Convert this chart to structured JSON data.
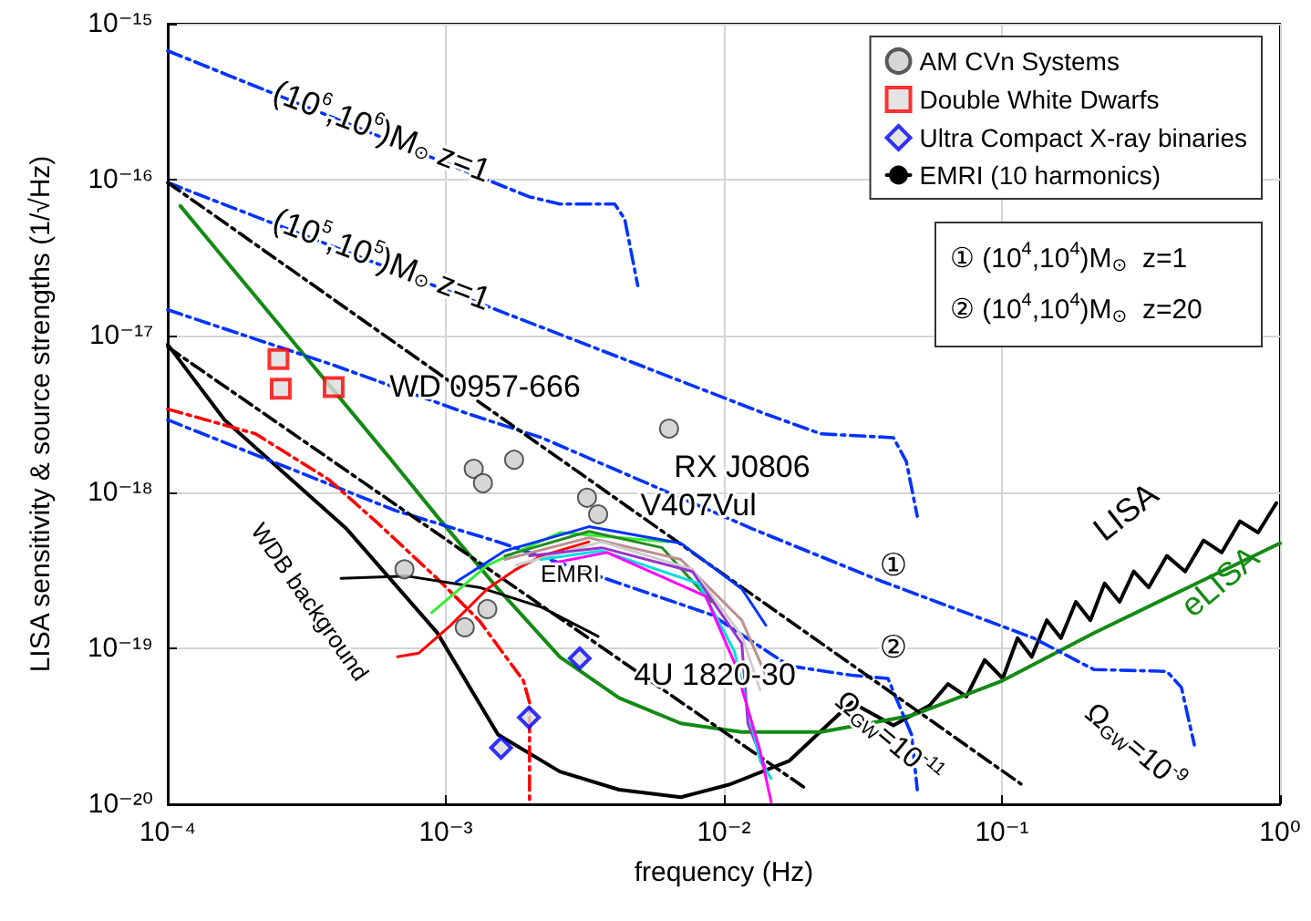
{
  "chart_data": {
    "type": "line",
    "xlabel": "frequency (Hz)",
    "ylabel": "LISA sensitivity & source strengths (1/√Hz)",
    "log": "xy",
    "grid": true,
    "legend": "top right",
    "xlim": [
      0.0001,
      1
    ],
    "ylim": [
      1e-20,
      1e-15
    ],
    "xticks": [
      {
        "value": 0.0001,
        "label": "10⁻⁴"
      },
      {
        "value": 0.001,
        "label": "10⁻³"
      },
      {
        "value": 0.01,
        "label": "10⁻²"
      },
      {
        "value": 0.1,
        "label": "10⁻¹"
      },
      {
        "value": 1,
        "label": "10⁰"
      }
    ],
    "yticks": [
      {
        "value": 1e-20,
        "label": "10⁻²⁰"
      },
      {
        "value": 1e-19,
        "label": "10⁻¹⁹"
      },
      {
        "value": 1e-18,
        "label": "10⁻¹⁸"
      },
      {
        "value": 1e-17,
        "label": "10⁻¹⁷"
      },
      {
        "value": 1e-16,
        "label": "10⁻¹⁶"
      },
      {
        "value": 1e-15,
        "label": "10⁻¹⁵"
      }
    ],
    "series": [
      {
        "type": "line",
        "name": "LISA",
        "color": "#000000",
        "line_style": "solid",
        "marker": "none",
        "x": [
          0.0001,
          0.00016,
          0.00044,
          0.00093,
          0.00154,
          0.00257,
          0.0042,
          0.007,
          0.0105,
          0.0172,
          0.0288,
          0.0407,
          0.055,
          0.064,
          0.0745,
          0.0867,
          0.1007,
          0.1138,
          0.128,
          0.145,
          0.163,
          0.1845,
          0.208,
          0.234,
          0.265,
          0.298,
          0.337,
          0.392,
          0.456,
          0.531,
          0.617,
          0.718,
          0.834,
          0.97
        ],
        "values": [
          8.8e-18,
          2.9e-18,
          5.8e-19,
          1.26e-19,
          2.8e-20,
          1.62e-20,
          1.24e-20,
          1.11e-20,
          1.34e-20,
          1.9e-20,
          4.5e-20,
          3.2e-20,
          4.3e-20,
          5.9e-20,
          4.9e-20,
          8.4e-20,
          6.4e-20,
          1.16e-19,
          8.8e-20,
          1.51e-19,
          1.16e-19,
          1.98e-19,
          1.51e-19,
          2.6e-19,
          1.98e-19,
          3.1e-19,
          2.45e-19,
          3.9e-19,
          3.1e-19,
          4.9e-19,
          4.1e-19,
          6.5e-19,
          5.5e-19,
          8.5e-19
        ]
      },
      {
        "type": "line",
        "name": "eLISA",
        "color": "#138a13",
        "line_style": "solid",
        "marker": "none",
        "x": [
          0.000111,
          0.00062,
          0.00093,
          0.00154,
          0.00257,
          0.0042,
          0.007,
          0.0116,
          0.0223,
          0.0473,
          0.1007,
          0.214,
          0.456,
          1
        ],
        "values": [
          6.8e-17,
          1.7e-18,
          7e-19,
          2.4e-19,
          8.8e-20,
          4.8e-20,
          3.3e-20,
          2.9e-20,
          2.9e-20,
          3.7e-20,
          6.2e-20,
          1.25e-19,
          2.4e-19,
          4.7e-19
        ]
      },
      {
        "type": "line",
        "color": "#0033ff",
        "line_style": "dashed",
        "marker": "none",
        "x": [
          0.0001,
          0.00199,
          0.00257,
          0.00405,
          0.0044,
          0.0049
        ],
        "values": [
          6.7e-16,
          7.8e-17,
          7e-17,
          7e-17,
          5.6e-17,
          2.1e-17
        ]
      },
      {
        "type": "line",
        "color": "#0033ff",
        "line_style": "dashed",
        "marker": "none",
        "x": [
          0.0001,
          0.01416,
          0.0223,
          0.0407,
          0.0453,
          0.0496
        ],
        "values": [
          9.6e-17,
          3.16e-18,
          2.36e-18,
          2.23e-18,
          1.57e-18,
          7e-19
        ]
      },
      {
        "type": "line",
        "color": "#0033ff",
        "line_style": "dashed",
        "marker": "none",
        "x": [
          0.0001,
          0.000395,
          0.00121,
          0.00221,
          0.0127,
          0.0366,
          0.13,
          0.214,
          0.392,
          0.442,
          0.492
        ],
        "values": [
          1.47e-17,
          6.5e-18,
          3.16e-18,
          2.23e-18,
          5.8e-19,
          2.7e-19,
          1.16e-19,
          7.3e-20,
          7.1e-20,
          5.6e-20,
          2.4e-20
        ]
      },
      {
        "type": "line",
        "color": "#0033ff",
        "line_style": "dashed",
        "marker": "none",
        "x": [
          0.0001,
          0.00066,
          0.00154,
          0.009,
          0.0172,
          0.0288,
          0.0389,
          0.0427,
          0.0473,
          0.0496
        ],
        "values": [
          2.9e-18,
          7.6e-19,
          4.8e-19,
          1.64e-19,
          7.7e-20,
          6.7e-20,
          6.4e-20,
          4.3e-20,
          2.8e-20,
          1.24e-20
        ]
      },
      {
        "type": "line",
        "color": "#ff0000",
        "line_style": "dashed",
        "marker": "none",
        "x": [
          0.0001,
          0.000207,
          0.00038,
          0.00057,
          0.00093,
          0.00132,
          0.0019,
          0.002,
          0.002
        ],
        "values": [
          3.4e-18,
          2.36e-18,
          1.2e-18,
          6.3e-19,
          2.8e-19,
          1.5e-19,
          6.2e-20,
          4.5e-20,
          1e-20
        ]
      },
      {
        "type": "line",
        "color": "#000000",
        "line_style": "dashed",
        "marker": "none",
        "x": [
          0.0001,
          0.02
        ],
        "values": [
          8.5e-18,
          1.24e-20
        ]
      },
      {
        "type": "line",
        "color": "#000000",
        "line_style": "dashed",
        "marker": "none",
        "x": [
          0.0001,
          0.117
        ],
        "values": [
          9.6e-17,
          1.35e-20
        ]
      },
      {
        "type": "scatter",
        "name": "AM CVn Systems",
        "color": "#cccccc",
        "marker": "circle",
        "x": [
          0.00635,
          0.00126,
          0.00136,
          0.00176,
          0.00322,
          0.00353,
          0.00071,
          0.00141,
          0.00117
        ],
        "values": [
          2.55e-18,
          1.41e-18,
          1.14e-18,
          1.61e-18,
          9.2e-19,
          7.2e-19,
          3.2e-19,
          1.78e-19,
          1.36e-19
        ]
      },
      {
        "type": "scatter",
        "name": "Double White Dwarfs",
        "color": "#ff0000",
        "marker": "square",
        "x": [
          0.00025,
          0.000255,
          0.000395
        ],
        "values": [
          7.1e-18,
          4.6e-18,
          4.7e-18
        ]
      },
      {
        "type": "scatter",
        "name": "Ultra Compact X-ray binaries",
        "color": "#0000ff",
        "marker": "diamond",
        "x": [
          0.00158,
          0.00199,
          0.00303
        ],
        "values": [
          2.3e-20,
          3.6e-20,
          8.6e-20
        ]
      },
      {
        "type": "line",
        "name": "EMRI (10 harmonics)",
        "color": "#000000",
        "line_style": "solid",
        "marker": "none",
        "x": [
          0.00042,
          0.00072,
          0.00132,
          0.00221,
          0.00353
        ],
        "values": [
          2.8e-19,
          2.9e-19,
          2.45e-19,
          1.83e-19,
          1.19e-19
        ]
      },
      {
        "type": "line",
        "color": "#ff0000",
        "line_style": "solid",
        "marker": "none",
        "x": [
          0.00067,
          0.0008,
          0.00104,
          0.00141,
          0.00179,
          0.00221,
          0.00327
        ],
        "values": [
          8.8e-20,
          9.3e-20,
          1.4e-19,
          2.4e-19,
          3.2e-19,
          3.9e-19,
          4.8e-19
        ]
      },
      {
        "type": "line",
        "color": "#33ee33",
        "line_style": "solid",
        "marker": "none",
        "x": [
          0.00089,
          0.00141,
          0.00257,
          0.00635
        ],
        "values": [
          1.69e-19,
          3.4e-19,
          5.5e-19,
          4.8e-19
        ]
      },
      {
        "type": "line",
        "color": "#0033ff",
        "line_style": "solid",
        "marker": "none",
        "x": [
          0.00109,
          0.00163,
          0.00327,
          0.007,
          0.0116,
          0.01416
        ],
        "values": [
          2.66e-19,
          4.2e-19,
          6e-19,
          4.7e-19,
          2.4e-19,
          1.4e-19
        ]
      },
      {
        "type": "line",
        "color": "#228b22",
        "line_style": "solid",
        "marker": "none",
        "x": [
          0.00163,
          0.00327,
          0.006,
          0.009
        ],
        "values": [
          3.9e-19,
          5.6e-19,
          4.4e-19,
          1.98e-19
        ]
      },
      {
        "type": "line",
        "color": "#bc8f8f",
        "line_style": "solid",
        "marker": "none",
        "x": [
          0.00163,
          0.00327,
          0.007,
          0.0116,
          0.01416
        ],
        "values": [
          3.7e-19,
          5.1e-19,
          3.7e-19,
          1.51e-19,
          6.7e-20
        ]
      },
      {
        "type": "line",
        "color": "#cccccc",
        "line_style": "solid",
        "marker": "none",
        "x": [
          0.00179,
          0.00364,
          0.0077,
          0.0116,
          0.0135
        ],
        "values": [
          3.4e-19,
          4.8e-19,
          3.2e-19,
          1.2e-19,
          5.4e-20
        ]
      },
      {
        "type": "line",
        "color": "#9933cc",
        "line_style": "solid",
        "marker": "none",
        "x": [
          0.002,
          0.00364,
          0.0077,
          0.0116,
          0.0122,
          0.01416
        ],
        "values": [
          3.9e-19,
          4.4e-19,
          3.1e-19,
          1.07e-19,
          3.3e-20,
          1.67e-20
        ]
      },
      {
        "type": "line",
        "color": "#00dddd",
        "line_style": "solid",
        "marker": "none",
        "x": [
          0.0022,
          0.00364,
          0.0081,
          0.0109,
          0.0135,
          0.0148
        ],
        "values": [
          3.7e-19,
          4.2e-19,
          2.6e-19,
          9.6e-20,
          1.9e-20,
          1.46e-20
        ]
      },
      {
        "type": "line",
        "color": "#ff00ff",
        "line_style": "solid",
        "marker": "none",
        "x": [
          0.0024,
          0.0038,
          0.0086,
          0.0109,
          0.0135,
          0.0148
        ],
        "values": [
          3.5e-19,
          4.1e-19,
          2.15e-19,
          8.1e-20,
          2.2e-20,
          1.03e-20
        ]
      }
    ],
    "annotations": [
      {
        "text": "(10$^{6}$,10$^{6}$)M$_{⊙}$ z=1",
        "x": 0.00059,
        "y": 2.05e-16
      },
      {
        "text": "(10$^{5}$,10$^{5}$)M$_{⊙}$ z=1",
        "x": 0.00059,
        "y": 3.1e-17
      },
      "WD 0957-666",
      "RX J0806",
      {
        "text": "V407Vul",
        "x": 0.0081,
        "y": 8.2e-19
      },
      "4U 1820-30",
      "WDB background",
      {
        "text": "EMRI",
        "x": 0.0028,
        "y": 3e-19
      },
      "①",
      "②",
      "Ω$_{GW}$=10$^{-11}$",
      "Ω$_{GW}$=10$^{-9}$",
      "① (10$^{4}$,10$^{4}$)M$_{⊙}$  z=1",
      "② (10$^{4}$,10$^{4}$)M$_{⊙}$  z=20"
    ]
  }
}
